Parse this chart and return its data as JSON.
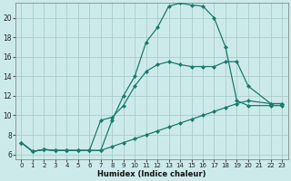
{
  "xlabel": "Humidex (Indice chaleur)",
  "background_color": "#cdeaea",
  "grid_color": "#aacccc",
  "line_color": "#1a7a6e",
  "xlim": [
    -0.5,
    23.5
  ],
  "ylim": [
    5.5,
    21.5
  ],
  "yticks": [
    6,
    8,
    10,
    12,
    14,
    16,
    18,
    20
  ],
  "xticks": [
    0,
    1,
    2,
    3,
    4,
    5,
    6,
    7,
    8,
    9,
    10,
    11,
    12,
    13,
    14,
    15,
    16,
    17,
    18,
    19,
    20,
    21,
    22,
    23
  ],
  "line1_x": [
    0,
    1,
    2,
    3,
    4,
    5,
    6,
    7,
    8,
    9,
    10,
    11,
    12,
    13,
    14,
    15,
    16,
    17,
    18,
    19,
    20,
    22,
    23
  ],
  "line1_y": [
    7.2,
    6.3,
    6.5,
    6.4,
    6.4,
    6.4,
    6.4,
    6.4,
    9.5,
    12.0,
    14.0,
    17.5,
    19.0,
    21.2,
    21.5,
    21.3,
    21.2,
    20.0,
    17.0,
    11.5,
    11.0,
    11.0,
    11.0
  ],
  "line2_x": [
    0,
    1,
    2,
    3,
    4,
    5,
    6,
    7,
    8,
    9,
    10,
    11,
    12,
    13,
    14,
    15,
    16,
    17,
    18,
    19,
    20,
    22,
    23
  ],
  "line2_y": [
    7.2,
    6.3,
    6.5,
    6.4,
    6.4,
    6.4,
    6.4,
    9.5,
    9.8,
    11.0,
    13.0,
    14.5,
    15.2,
    15.5,
    15.2,
    15.0,
    15.0,
    15.0,
    15.5,
    15.5,
    13.0,
    11.2,
    11.2
  ],
  "line3_x": [
    0,
    1,
    2,
    3,
    4,
    5,
    6,
    7,
    8,
    9,
    10,
    11,
    12,
    13,
    14,
    15,
    16,
    17,
    18,
    19,
    20,
    22,
    23
  ],
  "line3_y": [
    7.2,
    6.3,
    6.5,
    6.4,
    6.4,
    6.4,
    6.4,
    6.4,
    6.8,
    7.2,
    7.6,
    8.0,
    8.4,
    8.8,
    9.2,
    9.6,
    10.0,
    10.4,
    10.8,
    11.2,
    11.5,
    11.2,
    11.2
  ]
}
